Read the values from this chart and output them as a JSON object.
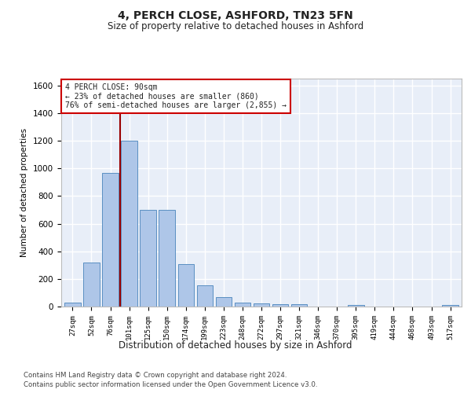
{
  "title": "4, PERCH CLOSE, ASHFORD, TN23 5FN",
  "subtitle": "Size of property relative to detached houses in Ashford",
  "xlabel": "Distribution of detached houses by size in Ashford",
  "ylabel": "Number of detached properties",
  "footnote1": "Contains HM Land Registry data © Crown copyright and database right 2024.",
  "footnote2": "Contains public sector information licensed under the Open Government Licence v3.0.",
  "bar_labels": [
    "27sqm",
    "52sqm",
    "76sqm",
    "101sqm",
    "125sqm",
    "150sqm",
    "174sqm",
    "199sqm",
    "223sqm",
    "248sqm",
    "272sqm",
    "297sqm",
    "321sqm",
    "346sqm",
    "370sqm",
    "395sqm",
    "419sqm",
    "444sqm",
    "468sqm",
    "493sqm",
    "517sqm"
  ],
  "bar_values": [
    30,
    320,
    970,
    1200,
    700,
    700,
    305,
    155,
    70,
    30,
    20,
    15,
    15,
    0,
    0,
    13,
    0,
    0,
    0,
    0,
    13
  ],
  "bar_color": "#aec6e8",
  "bar_edge_color": "#5a8fc2",
  "bg_color": "#e8eef8",
  "grid_color": "#ffffff",
  "fig_bg_color": "#ffffff",
  "vline_color": "#990000",
  "vline_x_index": 2.5,
  "annotation_text": "4 PERCH CLOSE: 90sqm\n← 23% of detached houses are smaller (860)\n76% of semi-detached houses are larger (2,855) →",
  "annotation_box_color": "#cc0000",
  "ylim": [
    0,
    1650
  ],
  "yticks": [
    0,
    200,
    400,
    600,
    800,
    1000,
    1200,
    1400,
    1600
  ]
}
